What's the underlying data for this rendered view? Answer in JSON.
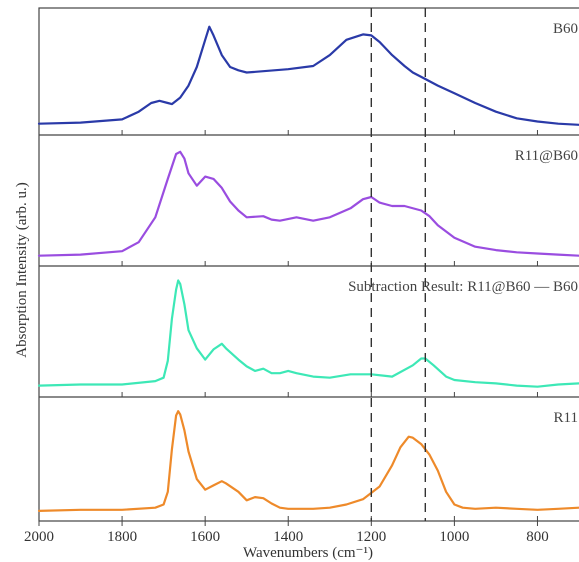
{
  "chart_data": {
    "type": "line",
    "xlabel": "Wavenumbers (cm⁻¹)",
    "ylabel": "Absorption Intensity (arb. u.)",
    "xlim": [
      2000,
      700
    ],
    "x_inverted": true,
    "x_ticks": [
      2000,
      1800,
      1600,
      1400,
      1200,
      1000,
      800
    ],
    "x_tick_labels": [
      "2000",
      "1800",
      "1600",
      "1400",
      "1200",
      "1000",
      "800"
    ],
    "reference_lines": [
      1200,
      1070
    ],
    "grid": false,
    "panels": [
      {
        "label": "B60",
        "color": "#2a3aa8",
        "ylim": [
          0,
          1
        ],
        "series": {
          "x": [
            2000,
            1900,
            1800,
            1760,
            1730,
            1710,
            1690,
            1680,
            1660,
            1640,
            1620,
            1600,
            1590,
            1580,
            1560,
            1540,
            1520,
            1500,
            1400,
            1340,
            1300,
            1260,
            1220,
            1200,
            1180,
            1150,
            1120,
            1100,
            1070,
            1040,
            1000,
            950,
            900,
            850,
            800,
            750,
            700
          ],
          "y": [
            0.03,
            0.04,
            0.07,
            0.14,
            0.22,
            0.24,
            0.22,
            0.21,
            0.27,
            0.38,
            0.55,
            0.8,
            0.92,
            0.84,
            0.66,
            0.55,
            0.52,
            0.5,
            0.53,
            0.56,
            0.66,
            0.8,
            0.85,
            0.84,
            0.78,
            0.66,
            0.56,
            0.5,
            0.44,
            0.38,
            0.31,
            0.22,
            0.14,
            0.08,
            0.05,
            0.03,
            0.02
          ]
        }
      },
      {
        "label": "R11@B60",
        "color": "#9a4de0",
        "ylim": [
          0,
          1
        ],
        "series": {
          "x": [
            2000,
            1900,
            1800,
            1760,
            1720,
            1690,
            1670,
            1660,
            1650,
            1640,
            1620,
            1600,
            1580,
            1560,
            1540,
            1520,
            1500,
            1460,
            1440,
            1420,
            1380,
            1340,
            1300,
            1250,
            1220,
            1200,
            1180,
            1150,
            1120,
            1080,
            1060,
            1040,
            1000,
            950,
            900,
            850,
            800,
            750,
            700
          ],
          "y": [
            0.02,
            0.03,
            0.06,
            0.14,
            0.36,
            0.7,
            0.92,
            0.94,
            0.88,
            0.75,
            0.64,
            0.72,
            0.7,
            0.62,
            0.5,
            0.42,
            0.36,
            0.37,
            0.34,
            0.33,
            0.36,
            0.33,
            0.36,
            0.44,
            0.52,
            0.54,
            0.49,
            0.46,
            0.46,
            0.42,
            0.37,
            0.29,
            0.18,
            0.1,
            0.07,
            0.05,
            0.04,
            0.03,
            0.02
          ]
        }
      },
      {
        "label": "Subtraction Result: R11@B60 — B60",
        "color": "#3de8b6",
        "ylim": [
          0,
          1
        ],
        "series": {
          "x": [
            2000,
            1900,
            1800,
            1720,
            1700,
            1690,
            1680,
            1670,
            1665,
            1660,
            1650,
            1640,
            1620,
            1600,
            1580,
            1560,
            1550,
            1520,
            1500,
            1480,
            1460,
            1440,
            1420,
            1400,
            1380,
            1340,
            1300,
            1250,
            1200,
            1150,
            1100,
            1080,
            1070,
            1050,
            1020,
            1000,
            950,
            900,
            850,
            800,
            750,
            700
          ],
          "y": [
            0.03,
            0.04,
            0.04,
            0.07,
            0.1,
            0.25,
            0.62,
            0.88,
            0.96,
            0.93,
            0.75,
            0.52,
            0.36,
            0.26,
            0.35,
            0.4,
            0.36,
            0.26,
            0.2,
            0.16,
            0.18,
            0.14,
            0.14,
            0.16,
            0.14,
            0.11,
            0.1,
            0.13,
            0.13,
            0.11,
            0.21,
            0.27,
            0.27,
            0.21,
            0.11,
            0.08,
            0.06,
            0.05,
            0.03,
            0.02,
            0.04,
            0.05
          ]
        }
      },
      {
        "label": "R11",
        "color": "#ee8a2a",
        "ylim": [
          0,
          1
        ],
        "series": {
          "x": [
            2000,
            1900,
            1800,
            1720,
            1700,
            1690,
            1680,
            1670,
            1665,
            1660,
            1650,
            1640,
            1620,
            1600,
            1580,
            1560,
            1550,
            1520,
            1500,
            1480,
            1460,
            1440,
            1420,
            1400,
            1380,
            1340,
            1300,
            1260,
            1220,
            1180,
            1150,
            1130,
            1110,
            1100,
            1080,
            1060,
            1040,
            1020,
            1000,
            980,
            950,
            900,
            850,
            800,
            750,
            700
          ],
          "y": [
            0.02,
            0.03,
            0.03,
            0.05,
            0.08,
            0.2,
            0.6,
            0.92,
            0.96,
            0.93,
            0.78,
            0.58,
            0.32,
            0.22,
            0.26,
            0.3,
            0.28,
            0.2,
            0.12,
            0.15,
            0.14,
            0.09,
            0.05,
            0.04,
            0.04,
            0.04,
            0.05,
            0.08,
            0.13,
            0.25,
            0.45,
            0.62,
            0.72,
            0.71,
            0.65,
            0.55,
            0.4,
            0.2,
            0.08,
            0.05,
            0.04,
            0.05,
            0.04,
            0.03,
            0.04,
            0.05
          ]
        }
      }
    ]
  }
}
